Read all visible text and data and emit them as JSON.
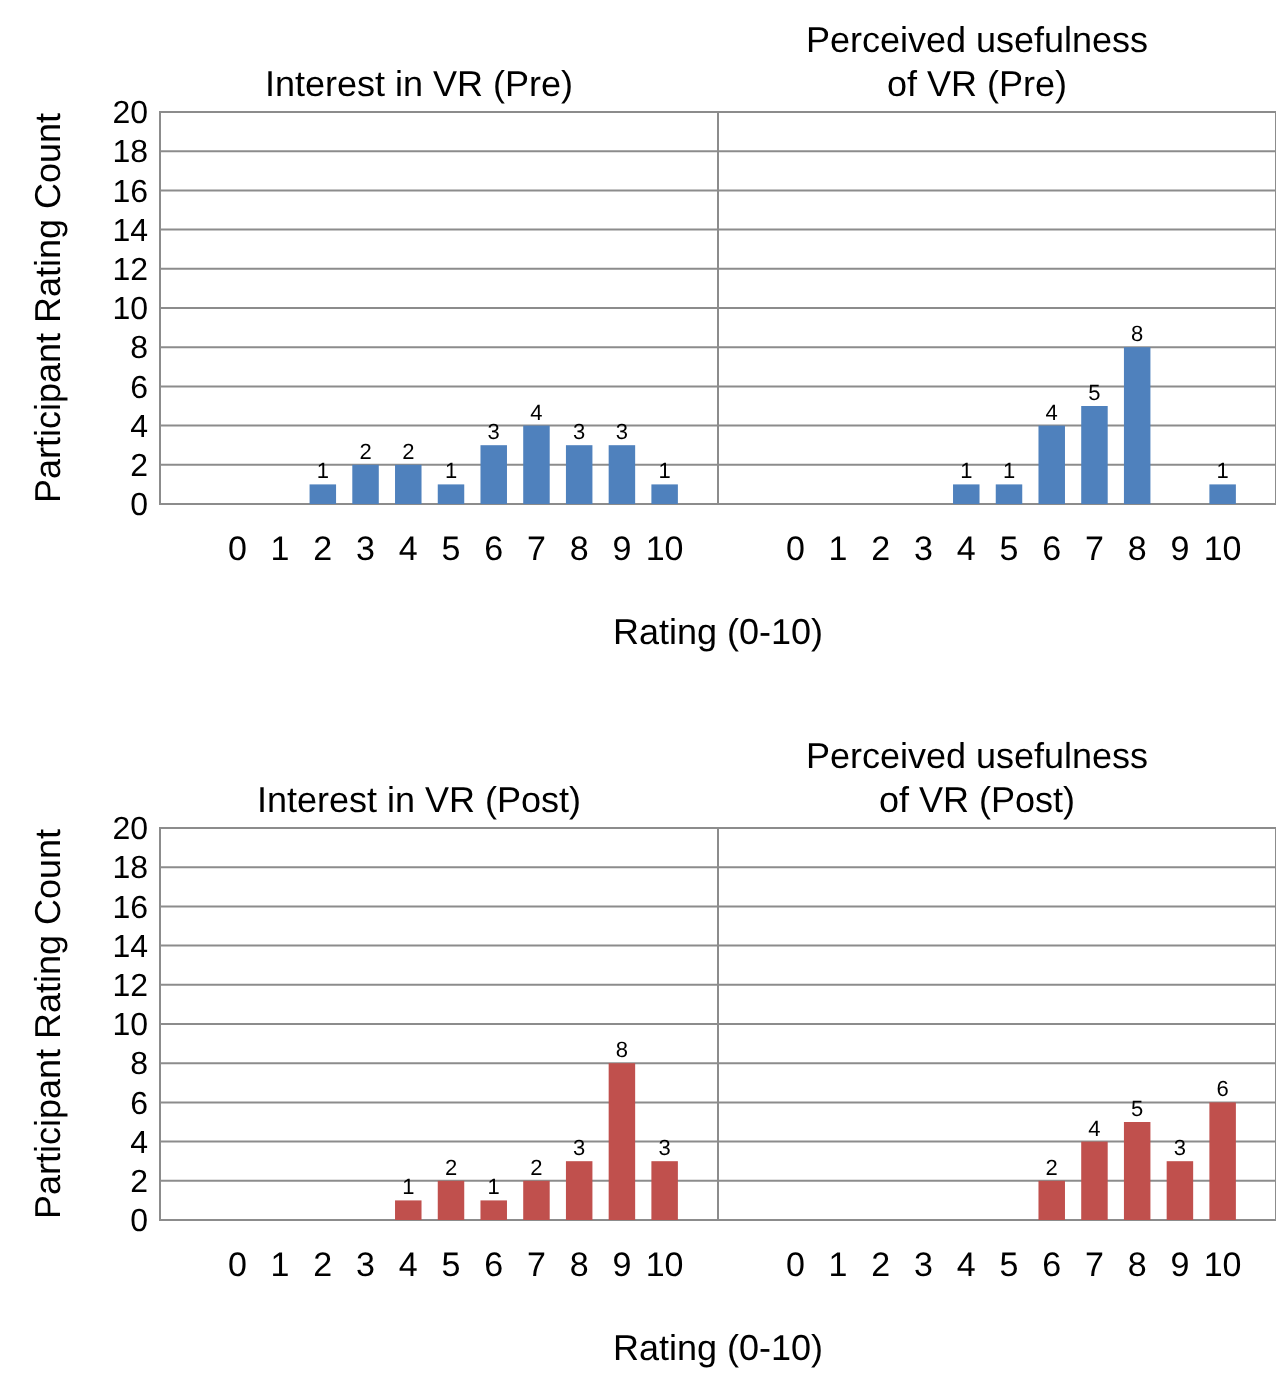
{
  "chart_data": [
    {
      "type": "bar",
      "title": "Interest in VR (Pre)",
      "ylabel": "Participant Rating Count",
      "xlabel": "Rating (0-10)",
      "categories": [
        "0",
        "1",
        "2",
        "3",
        "4",
        "5",
        "6",
        "7",
        "8",
        "9",
        "10"
      ],
      "values": [
        0,
        0,
        1,
        2,
        2,
        1,
        3,
        4,
        3,
        3,
        1
      ],
      "value_labels": [
        null,
        null,
        "1",
        "2",
        "2",
        "1",
        "3",
        "4",
        "3",
        "3",
        "1"
      ],
      "color": "#4f81bd",
      "ylim": [
        0,
        20
      ],
      "yticks": [
        0,
        2,
        4,
        6,
        8,
        10,
        12,
        14,
        16,
        18,
        20
      ],
      "grid": "y"
    },
    {
      "type": "bar",
      "title": "Perceived usefulness of VR (Pre)",
      "categories": [
        "0",
        "1",
        "2",
        "3",
        "4",
        "5",
        "6",
        "7",
        "8",
        "9",
        "10"
      ],
      "values": [
        0,
        0,
        0,
        0,
        1,
        1,
        4,
        5,
        8,
        0,
        1
      ],
      "value_labels": [
        null,
        null,
        null,
        null,
        "1",
        "1",
        "4",
        "5",
        "8",
        null,
        "1"
      ],
      "color": "#4f81bd",
      "ylim": [
        0,
        20
      ],
      "yticks": [
        0,
        2,
        4,
        6,
        8,
        10,
        12,
        14,
        16,
        18,
        20
      ],
      "grid": "y",
      "tick_labels": "x"
    },
    {
      "type": "bar",
      "title": "Interest in VR (Post)",
      "ylabel": "Participant Rating Count",
      "xlabel": "Rating (0-10)",
      "categories": [
        "0",
        "1",
        "2",
        "3",
        "4",
        "5",
        "6",
        "7",
        "8",
        "9",
        "10"
      ],
      "values": [
        0,
        0,
        0,
        0,
        1,
        2,
        1,
        2,
        3,
        8,
        3
      ],
      "value_labels": [
        null,
        null,
        null,
        null,
        "1",
        "2",
        "1",
        "2",
        "3",
        "8",
        "3"
      ],
      "color": "#c0504d",
      "ylim": [
        0,
        20
      ],
      "yticks": [
        0,
        2,
        4,
        6,
        8,
        10,
        12,
        14,
        16,
        18,
        20
      ],
      "grid": "y"
    },
    {
      "type": "bar",
      "title": "Perceived usefulness of VR (Post)",
      "categories": [
        "0",
        "1",
        "2",
        "3",
        "4",
        "5",
        "6",
        "7",
        "8",
        "9",
        "10"
      ],
      "values": [
        0,
        0,
        0,
        0,
        0,
        0,
        2,
        4,
        5,
        3,
        6
      ],
      "value_labels": [
        null,
        null,
        null,
        null,
        null,
        null,
        "2",
        "4",
        "5",
        "3",
        "6"
      ],
      "color": "#c0504d",
      "ylim": [
        0,
        20
      ],
      "yticks": [
        0,
        2,
        4,
        6,
        8,
        10,
        12,
        14,
        16,
        18,
        20
      ],
      "grid": "y",
      "tick_labels": "x"
    }
  ]
}
